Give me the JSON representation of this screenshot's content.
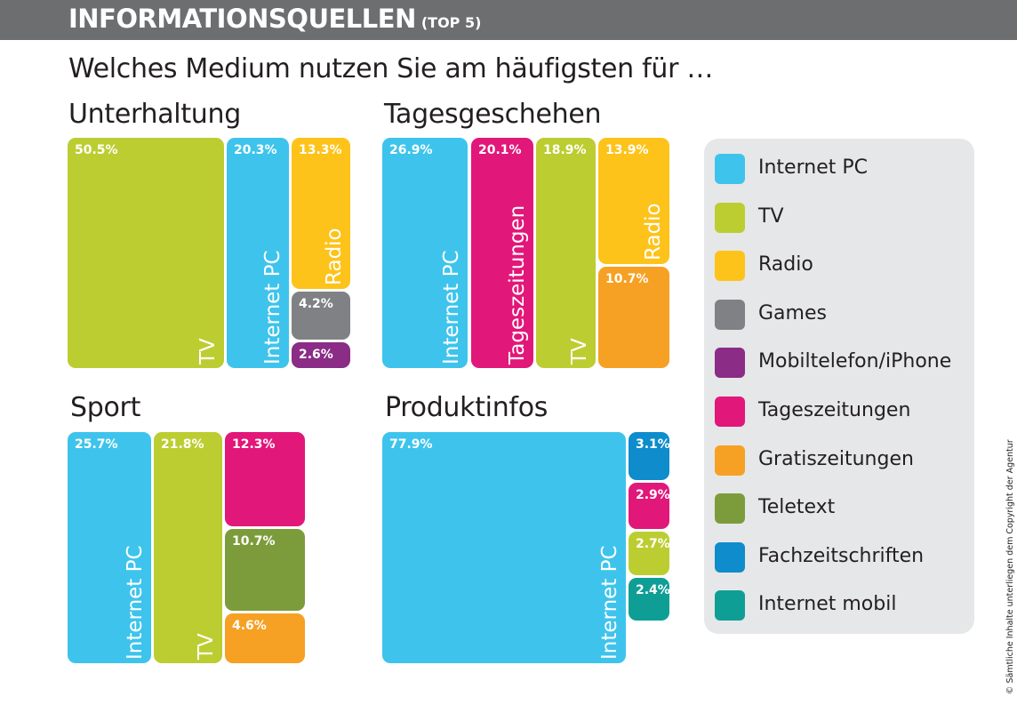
{
  "header": {
    "title": "INFORMATIONSQUELLEN",
    "subtitle": "(TOP 5)"
  },
  "question": "Welches Medium nutzen Sie am häufigsten für …",
  "colors": {
    "internet_pc": "#3ec4ec",
    "tv": "#bccd31",
    "radio": "#fdc31a",
    "games": "#808184",
    "mobiltelefon": "#8b2c86",
    "tageszeitungen": "#e2177a",
    "gratiszeitungen": "#f6a123",
    "teletext": "#7c9c3b",
    "fachzeitschriften": "#0e8ccc",
    "internet_mobil": "#0e9e96",
    "header_bg": "#6d6e70",
    "legend_bg": "#e6e7e8"
  },
  "legend": [
    {
      "label": "Internet PC",
      "key": "internet_pc"
    },
    {
      "label": "TV",
      "key": "tv"
    },
    {
      "label": "Radio",
      "key": "radio"
    },
    {
      "label": "Games",
      "key": "games"
    },
    {
      "label": "Mobiltelefon/iPhone",
      "key": "mobiltelefon"
    },
    {
      "label": "Tageszeitungen",
      "key": "tageszeitungen"
    },
    {
      "label": "Gratiszeitungen",
      "key": "gratiszeitungen"
    },
    {
      "label": "Teletext",
      "key": "teletext"
    },
    {
      "label": "Fachzeitschriften",
      "key": "fachzeitschriften"
    },
    {
      "label": "Internet mobil",
      "key": "internet_mobil"
    }
  ],
  "chart_data": [
    {
      "type": "treemap",
      "title": "Unterhaltung",
      "series": [
        {
          "name": "TV",
          "key": "tv",
          "value": 50.5,
          "display": "50.5%",
          "label": "TV"
        },
        {
          "name": "Internet PC",
          "key": "internet_pc",
          "value": 20.3,
          "display": "20.3%",
          "label": "Internet PC"
        },
        {
          "name": "Radio",
          "key": "radio",
          "value": 13.3,
          "display": "13.3%",
          "label": "Radio"
        },
        {
          "name": "Games",
          "key": "games",
          "value": 4.2,
          "display": "4.2%",
          "label": ""
        },
        {
          "name": "Mobiltelefon/iPhone",
          "key": "mobiltelefon",
          "value": 2.6,
          "display": "2.6%",
          "label": ""
        }
      ]
    },
    {
      "type": "treemap",
      "title": "Tagesgeschehen",
      "series": [
        {
          "name": "Internet PC",
          "key": "internet_pc",
          "value": 26.9,
          "display": "26.9%",
          "label": "Internet PC"
        },
        {
          "name": "Tageszeitungen",
          "key": "tageszeitungen",
          "value": 20.1,
          "display": "20.1%",
          "label": "Tageszeitungen"
        },
        {
          "name": "TV",
          "key": "tv",
          "value": 18.9,
          "display": "18.9%",
          "label": "TV"
        },
        {
          "name": "Radio",
          "key": "radio",
          "value": 13.9,
          "display": "13.9%",
          "label": "Radio"
        },
        {
          "name": "Gratiszeitungen",
          "key": "gratiszeitungen",
          "value": 10.7,
          "display": "10.7%",
          "label": ""
        }
      ]
    },
    {
      "type": "treemap",
      "title": "Sport",
      "series": [
        {
          "name": "Internet PC",
          "key": "internet_pc",
          "value": 25.7,
          "display": "25.7%",
          "label": "Internet PC"
        },
        {
          "name": "TV",
          "key": "tv",
          "value": 21.8,
          "display": "21.8%",
          "label": "TV"
        },
        {
          "name": "Tageszeitungen",
          "key": "tageszeitungen",
          "value": 12.3,
          "display": "12.3%",
          "label": ""
        },
        {
          "name": "Teletext",
          "key": "teletext",
          "value": 10.7,
          "display": "10.7%",
          "label": ""
        },
        {
          "name": "Gratiszeitungen",
          "key": "gratiszeitungen",
          "value": 4.6,
          "display": "4.6%",
          "label": ""
        }
      ]
    },
    {
      "type": "treemap",
      "title": "Produktinfos",
      "series": [
        {
          "name": "Internet PC",
          "key": "internet_pc",
          "value": 77.9,
          "display": "77.9%",
          "label": "Internet PC"
        },
        {
          "name": "Fachzeitschriften",
          "key": "fachzeitschriften",
          "value": 3.1,
          "display": "3.1%",
          "label": ""
        },
        {
          "name": "Tageszeitungen",
          "key": "tageszeitungen",
          "value": 2.9,
          "display": "2.9%",
          "label": ""
        },
        {
          "name": "TV",
          "key": "tv",
          "value": 2.7,
          "display": "2.7%",
          "label": ""
        },
        {
          "name": "Internet mobil",
          "key": "internet_mobil",
          "value": 2.4,
          "display": "2.4%",
          "label": ""
        }
      ]
    }
  ],
  "copyright": "© Sämtliche Inhalte unterliegen dem Copyright der Agentur"
}
